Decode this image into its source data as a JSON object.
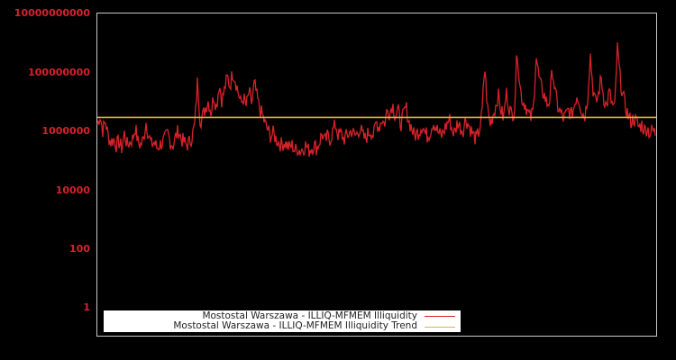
{
  "chart_data": {
    "type": "line",
    "title": "",
    "xlabel": "",
    "ylabel": "",
    "yscale": "log",
    "ylim": [
      0.5,
      10000000000
    ],
    "y_ticks": [
      "10000000000",
      "100000000",
      "1000000",
      "10000",
      "100",
      "1"
    ],
    "grid": false,
    "legend_position": "bottom-left inside",
    "series": [
      {
        "name": "Mostostal Warszawa - ILLIQ-MFMEM Illiquidity",
        "color": "#d8222a",
        "log10_values_approx": [
          6.2,
          6.5,
          6.0,
          6.3,
          5.8,
          5.6,
          5.7,
          5.5,
          5.6,
          5.4,
          5.9,
          5.5,
          5.6,
          5.7,
          6.1,
          5.6,
          5.5,
          5.7,
          6.3,
          5.8,
          5.5,
          5.6,
          5.4,
          5.5,
          5.6,
          5.7,
          5.9,
          5.6,
          5.5,
          5.8,
          6.0,
          5.7,
          5.6,
          5.5,
          5.6,
          5.8,
          6.2,
          7.7,
          6.3,
          6.5,
          6.8,
          7.0,
          6.6,
          7.2,
          6.8,
          7.6,
          7.0,
          7.4,
          7.8,
          7.5,
          8.0,
          7.7,
          7.3,
          6.9,
          7.1,
          6.8,
          7.3,
          6.9,
          7.6,
          7.1,
          6.7,
          6.5,
          6.2,
          6.0,
          5.8,
          5.9,
          5.7,
          5.6,
          5.5,
          5.6,
          5.5,
          5.4,
          5.5,
          5.3,
          5.4,
          5.3,
          5.4,
          5.5,
          5.3,
          5.4,
          5.5,
          5.4,
          5.6,
          5.9,
          5.6,
          5.8,
          5.7,
          6.0,
          6.2,
          5.8,
          5.9,
          5.7,
          5.8,
          5.9,
          6.0,
          5.8,
          5.9,
          6.1,
          5.8,
          5.7,
          5.9,
          6.0,
          5.8,
          6.3,
          6.1,
          6.4,
          6.2,
          6.7,
          6.6,
          6.9,
          6.5,
          6.7,
          6.2,
          6.5,
          6.8,
          6.3,
          6.1,
          5.8,
          5.9,
          6.0,
          6.2,
          5.9,
          5.8,
          6.0,
          6.3,
          6.1,
          5.9,
          5.8,
          6.0,
          6.2,
          6.4,
          6.0,
          5.9,
          6.3,
          6.1,
          6.0,
          6.4,
          6.2,
          6.0,
          5.8,
          5.7,
          6.0,
          6.5,
          8.2,
          6.8,
          6.2,
          6.5,
          6.8,
          7.2,
          6.7,
          6.4,
          7.3,
          6.8,
          6.5,
          6.7,
          8.8,
          7.5,
          7.0,
          6.9,
          6.6,
          6.4,
          6.7,
          8.6,
          7.8,
          7.4,
          7.2,
          6.9,
          7.0,
          8.1,
          7.3,
          6.8,
          6.6,
          6.4,
          6.5,
          6.7,
          6.5,
          6.8,
          7.2,
          7.0,
          6.6,
          6.5,
          7.1,
          8.6,
          7.4,
          6.9,
          7.2,
          7.8,
          7.1,
          6.8,
          7.3,
          6.9,
          6.7,
          8.8,
          7.8,
          7.2,
          6.8,
          6.5,
          6.3,
          6.4,
          6.3,
          6.1,
          6.2,
          6.0,
          6.1,
          5.9,
          6.0,
          5.9
        ]
      },
      {
        "name": "Mostostal Warszawa - ILLIQ-MFMEM Illiquidity Trend",
        "color": "#d9b53a",
        "values_approx": [
          2750000,
          2750000
        ]
      }
    ]
  },
  "axes": {
    "y_ticks": [
      {
        "label": "10000000000",
        "log10": 10
      },
      {
        "label": "100000000",
        "log10": 8
      },
      {
        "label": "1000000",
        "log10": 6
      },
      {
        "label": "10000",
        "log10": 4
      },
      {
        "label": "100",
        "log10": 2
      },
      {
        "label": "1",
        "log10": 0
      }
    ]
  },
  "legend": {
    "items": [
      {
        "label": "Mostostal Warszawa - ILLIQ-MFMEM Illiquidity",
        "color": "#d8222a"
      },
      {
        "label": "Mostostal Warszawa - ILLIQ-MFMEM Illiquidity Trend",
        "color": "#d9b53a"
      }
    ]
  },
  "colors": {
    "background": "#000000",
    "frame": "#c8c8c8",
    "series": "#d8222a",
    "trend": "#d9b53a",
    "tick_text": "#d8222a"
  }
}
